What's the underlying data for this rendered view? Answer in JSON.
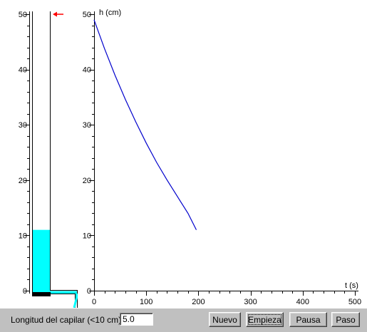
{
  "tank": {
    "ticks": [
      "0",
      "10",
      "20",
      "30",
      "40",
      "50"
    ],
    "water_level_cm": 11,
    "max_cm": 50,
    "marker_level_cm": 50,
    "water_color": "#00ffff",
    "marker_color": "#ff0000"
  },
  "chart_data": {
    "type": "line",
    "ylabel": "h (cm)",
    "xlabel": "t (s)",
    "xlim": [
      0,
      500
    ],
    "ylim": [
      0,
      50
    ],
    "xticks": [
      "0",
      "100",
      "200",
      "300",
      "400",
      "500"
    ],
    "yticks": [
      "0",
      "10",
      "20",
      "30",
      "40",
      "50"
    ],
    "grid": false,
    "series": [
      {
        "color": "#0000cc",
        "x": [
          0,
          20,
          40,
          60,
          80,
          100,
          120,
          140,
          160,
          180,
          196
        ],
        "y": [
          49.0,
          43.8,
          39.0,
          34.6,
          30.5,
          26.7,
          23.2,
          20.0,
          17.0,
          14.0,
          11.0
        ]
      }
    ]
  },
  "controls": {
    "length_label": "Longitud del capilar (<10 cm)",
    "length_value": "5.0",
    "new_label": "Nuevo",
    "start_label": "Empieza",
    "pause_label": "Pausa",
    "step_label": "Paso"
  }
}
